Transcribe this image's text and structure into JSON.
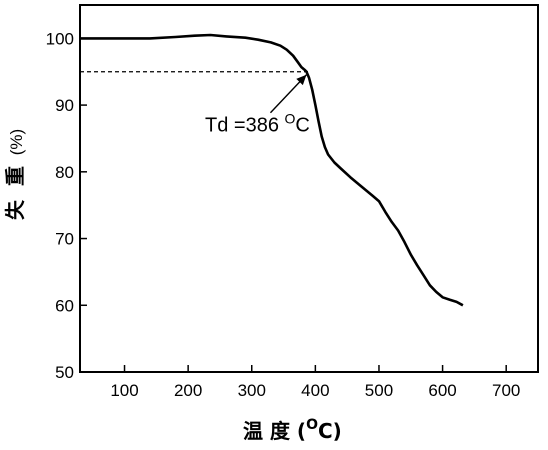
{
  "chart_data": {
    "type": "line",
    "title": "",
    "xlabel": "温 度 (",
    "xlabel_unit": "C)",
    "xlabel_unit_sup": "O",
    "ylabel_chars": [
      "失",
      "重"
    ],
    "ylabel_unit": "(%)",
    "xlim": [
      30,
      750
    ],
    "ylim": [
      50,
      105
    ],
    "x_ticks": [
      100,
      200,
      300,
      400,
      500,
      600,
      700
    ],
    "y_ticks": [
      50,
      60,
      70,
      80,
      90,
      100
    ],
    "grid": false,
    "series": [
      {
        "x": [
          30,
          60,
          100,
          140,
          180,
          210,
          235,
          260,
          290,
          310,
          330,
          345,
          355,
          365,
          372,
          378,
          383,
          386,
          390,
          395,
          400,
          405,
          410,
          415,
          420,
          430,
          440,
          455,
          470,
          490,
          500,
          510,
          520,
          530,
          540,
          550,
          560,
          570,
          580,
          590,
          600,
          612,
          622,
          632
        ],
        "y": [
          100,
          100,
          100,
          100,
          100.2,
          100.4,
          100.5,
          100.3,
          100.1,
          99.8,
          99.4,
          98.9,
          98.3,
          97.4,
          96.5,
          95.7,
          95.3,
          95.0,
          94.1,
          92.3,
          90.0,
          87.6,
          85.3,
          83.7,
          82.6,
          81.4,
          80.5,
          79.2,
          78.0,
          76.4,
          75.6,
          74.0,
          72.5,
          71.2,
          69.5,
          67.6,
          66.0,
          64.5,
          63.0,
          62.0,
          61.2,
          60.8,
          60.5,
          60.0
        ]
      }
    ],
    "reference_line": {
      "y": 95.0,
      "x_from": 30,
      "x_to": 392
    },
    "annotation": {
      "text": "Td =386 ",
      "sup": "O",
      "unit": "C",
      "arrow_to_x": 386,
      "arrow_to_y": 95.0
    }
  }
}
